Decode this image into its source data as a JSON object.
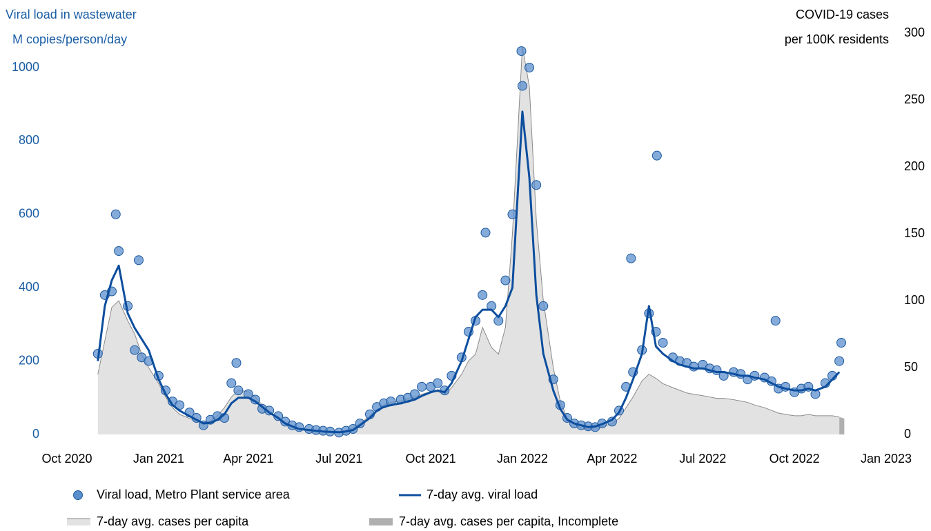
{
  "chart_data": {
    "type": "line",
    "ylabel": [
      "Viral load in wastewater",
      "M copies/person/day"
    ],
    "y2label": [
      "COVID-19 cases",
      "per 100K residents"
    ],
    "xlim": [
      "2020-10-01",
      "2023-01-01"
    ],
    "xticks": [
      {
        "value": "2020-10-01",
        "label": "Oct 2020"
      },
      {
        "value": "2021-01-01",
        "label": "Jan 2021"
      },
      {
        "value": "2021-04-01",
        "label": "Apr 2021"
      },
      {
        "value": "2021-07-01",
        "label": "Jul 2021"
      },
      {
        "value": "2021-10-01",
        "label": "Oct 2021"
      },
      {
        "value": "2022-01-01",
        "label": "Jan 2022"
      },
      {
        "value": "2022-04-01",
        "label": "Apr 2022"
      },
      {
        "value": "2022-07-01",
        "label": "Jul 2022"
      },
      {
        "value": "2022-10-01",
        "label": "Oct 2022"
      },
      {
        "value": "2023-01-01",
        "label": "Jan 2023"
      }
    ],
    "ylim": [
      0,
      1094
    ],
    "yticks": [
      0,
      200,
      400,
      600,
      800,
      1000
    ],
    "y2lim": [
      0,
      300
    ],
    "y2ticks": [
      0,
      50,
      100,
      150,
      200,
      250,
      300
    ],
    "series": [
      {
        "name": "Viral load, Metro Plant service area",
        "type": "scatter",
        "color": "#5b8fcc",
        "x": [
          "2020-11-01",
          "2020-11-08",
          "2020-11-15",
          "2020-11-22",
          "2020-12-01",
          "2020-12-08",
          "2020-12-15",
          "2020-12-22",
          "2021-01-01",
          "2021-01-08",
          "2021-01-15",
          "2021-01-22",
          "2021-02-01",
          "2021-02-08",
          "2021-02-15",
          "2021-02-22",
          "2021-03-01",
          "2021-03-08",
          "2021-03-15",
          "2021-03-22",
          "2021-04-01",
          "2021-04-08",
          "2021-04-15",
          "2021-04-22",
          "2021-05-01",
          "2021-05-08",
          "2021-05-15",
          "2021-05-22",
          "2021-06-01",
          "2021-06-08",
          "2021-06-15",
          "2021-06-22",
          "2021-07-01",
          "2021-07-08",
          "2021-07-15",
          "2021-07-22",
          "2021-08-01",
          "2021-08-08",
          "2021-08-15",
          "2021-08-22",
          "2021-09-01",
          "2021-09-08",
          "2021-09-15",
          "2021-09-22",
          "2021-10-01",
          "2021-10-08",
          "2021-10-15",
          "2021-10-22",
          "2021-11-01",
          "2021-11-08",
          "2021-11-15",
          "2021-11-22",
          "2021-12-01",
          "2021-12-08",
          "2021-12-15",
          "2021-12-22",
          "2022-01-01",
          "2022-01-08",
          "2022-01-15",
          "2022-01-22",
          "2022-02-01",
          "2022-02-08",
          "2022-02-15",
          "2022-02-22",
          "2022-03-01",
          "2022-03-08",
          "2022-03-15",
          "2022-03-22",
          "2022-04-01",
          "2022-04-08",
          "2022-04-15",
          "2022-04-22",
          "2022-05-01",
          "2022-05-08",
          "2022-05-15",
          "2022-05-22",
          "2022-06-01",
          "2022-06-08",
          "2022-06-15",
          "2022-06-22",
          "2022-07-01",
          "2022-07-08",
          "2022-07-15",
          "2022-07-22",
          "2022-08-01",
          "2022-08-08",
          "2022-08-15",
          "2022-08-22",
          "2022-09-01",
          "2022-09-08",
          "2022-09-15",
          "2022-09-22",
          "2022-10-01",
          "2022-10-08",
          "2022-10-15",
          "2022-10-22",
          "2022-11-01",
          "2022-11-08",
          "2022-11-15",
          "2020-11-19",
          "2020-12-12",
          "2021-03-20",
          "2021-11-25",
          "2021-12-31",
          "2022-04-20",
          "2022-05-16",
          "2022-09-12",
          "2022-11-17"
        ],
        "values": [
          220,
          380,
          390,
          500,
          350,
          230,
          210,
          200,
          160,
          120,
          90,
          80,
          60,
          45,
          25,
          40,
          50,
          45,
          140,
          120,
          110,
          95,
          70,
          65,
          50,
          35,
          25,
          20,
          15,
          12,
          10,
          8,
          5,
          10,
          15,
          30,
          55,
          75,
          85,
          90,
          95,
          100,
          110,
          130,
          130,
          140,
          120,
          160,
          210,
          280,
          310,
          380,
          350,
          310,
          420,
          600,
          950,
          1000,
          680,
          350,
          150,
          80,
          45,
          30,
          25,
          22,
          20,
          30,
          35,
          65,
          130,
          170,
          230,
          330,
          280,
          250,
          210,
          200,
          195,
          185,
          190,
          180,
          175,
          160,
          170,
          165,
          150,
          160,
          155,
          145,
          125,
          130,
          115,
          125,
          130,
          110,
          140,
          160,
          200,
          600,
          475,
          195,
          550,
          1045,
          480,
          760,
          310,
          250
        ]
      },
      {
        "name": "7-day avg. viral load",
        "type": "line",
        "color": "#0d4e9e",
        "x": [
          "2020-11-01",
          "2020-11-08",
          "2020-11-15",
          "2020-11-22",
          "2020-12-01",
          "2020-12-08",
          "2020-12-15",
          "2020-12-22",
          "2021-01-01",
          "2021-01-08",
          "2021-01-15",
          "2021-01-22",
          "2021-02-01",
          "2021-02-08",
          "2021-02-15",
          "2021-02-22",
          "2021-03-01",
          "2021-03-08",
          "2021-03-15",
          "2021-03-22",
          "2021-04-01",
          "2021-04-08",
          "2021-04-15",
          "2021-04-22",
          "2021-05-01",
          "2021-05-08",
          "2021-05-15",
          "2021-05-22",
          "2021-06-01",
          "2021-06-08",
          "2021-06-15",
          "2021-06-22",
          "2021-07-01",
          "2021-07-08",
          "2021-07-15",
          "2021-07-22",
          "2021-08-01",
          "2021-08-08",
          "2021-08-15",
          "2021-08-22",
          "2021-09-01",
          "2021-09-08",
          "2021-09-15",
          "2021-09-22",
          "2021-10-01",
          "2021-10-08",
          "2021-10-15",
          "2021-10-22",
          "2021-11-01",
          "2021-11-08",
          "2021-11-15",
          "2021-11-22",
          "2021-12-01",
          "2021-12-08",
          "2021-12-15",
          "2021-12-22",
          "2022-01-01",
          "2022-01-08",
          "2022-01-15",
          "2022-01-22",
          "2022-02-01",
          "2022-02-08",
          "2022-02-15",
          "2022-02-22",
          "2022-03-01",
          "2022-03-08",
          "2022-03-15",
          "2022-03-22",
          "2022-04-01",
          "2022-04-08",
          "2022-04-15",
          "2022-04-22",
          "2022-05-01",
          "2022-05-08",
          "2022-05-15",
          "2022-05-22",
          "2022-06-01",
          "2022-06-08",
          "2022-06-15",
          "2022-06-22",
          "2022-07-01",
          "2022-07-08",
          "2022-07-15",
          "2022-07-22",
          "2022-08-01",
          "2022-08-08",
          "2022-08-15",
          "2022-08-22",
          "2022-09-01",
          "2022-09-08",
          "2022-09-15",
          "2022-09-22",
          "2022-10-01",
          "2022-10-08",
          "2022-10-15",
          "2022-10-22",
          "2022-11-01",
          "2022-11-08",
          "2022-11-15"
        ],
        "values": [
          200,
          350,
          420,
          460,
          330,
          290,
          260,
          230,
          150,
          110,
          80,
          65,
          50,
          40,
          30,
          32,
          40,
          55,
          85,
          100,
          100,
          90,
          75,
          60,
          45,
          30,
          22,
          15,
          12,
          10,
          8,
          7,
          6,
          8,
          12,
          25,
          45,
          65,
          75,
          80,
          85,
          90,
          95,
          105,
          115,
          120,
          115,
          140,
          200,
          260,
          320,
          340,
          340,
          320,
          350,
          400,
          880,
          700,
          380,
          220,
          120,
          70,
          40,
          30,
          25,
          20,
          22,
          28,
          40,
          60,
          100,
          150,
          220,
          350,
          240,
          220,
          200,
          190,
          185,
          180,
          180,
          175,
          170,
          170,
          165,
          160,
          160,
          155,
          150,
          140,
          130,
          125,
          120,
          120,
          125,
          120,
          130,
          150,
          170
        ]
      },
      {
        "name": "7-day avg. cases per capita",
        "type": "area",
        "axis": "y2",
        "color": "#e2e2e2",
        "x": [
          "2020-11-01",
          "2020-11-08",
          "2020-11-15",
          "2020-11-22",
          "2020-12-01",
          "2020-12-08",
          "2020-12-15",
          "2020-12-22",
          "2021-01-01",
          "2021-01-08",
          "2021-01-15",
          "2021-01-22",
          "2021-02-01",
          "2021-02-08",
          "2021-02-15",
          "2021-02-22",
          "2021-03-01",
          "2021-03-08",
          "2021-03-15",
          "2021-03-22",
          "2021-04-01",
          "2021-04-08",
          "2021-04-15",
          "2021-04-22",
          "2021-05-01",
          "2021-05-08",
          "2021-05-15",
          "2021-05-22",
          "2021-06-01",
          "2021-06-08",
          "2021-06-15",
          "2021-06-22",
          "2021-07-01",
          "2021-07-08",
          "2021-07-15",
          "2021-07-22",
          "2021-08-01",
          "2021-08-08",
          "2021-08-15",
          "2021-08-22",
          "2021-09-01",
          "2021-09-08",
          "2021-09-15",
          "2021-09-22",
          "2021-10-01",
          "2021-10-08",
          "2021-10-15",
          "2021-10-22",
          "2021-11-01",
          "2021-11-08",
          "2021-11-15",
          "2021-11-22",
          "2021-12-01",
          "2021-12-08",
          "2021-12-15",
          "2021-12-22",
          "2022-01-01",
          "2022-01-08",
          "2022-01-15",
          "2022-01-22",
          "2022-02-01",
          "2022-02-08",
          "2022-02-15",
          "2022-02-22",
          "2022-03-01",
          "2022-03-08",
          "2022-03-15",
          "2022-03-22",
          "2022-04-01",
          "2022-04-08",
          "2022-04-15",
          "2022-04-22",
          "2022-05-01",
          "2022-05-08",
          "2022-05-15",
          "2022-05-22",
          "2022-06-01",
          "2022-06-08",
          "2022-06-15",
          "2022-06-22",
          "2022-07-01",
          "2022-07-08",
          "2022-07-15",
          "2022-07-22",
          "2022-08-01",
          "2022-08-08",
          "2022-08-15",
          "2022-08-22",
          "2022-09-01",
          "2022-09-08",
          "2022-09-15",
          "2022-09-22",
          "2022-10-01",
          "2022-10-08",
          "2022-10-15",
          "2022-10-22",
          "2022-11-01",
          "2022-11-08",
          "2022-11-15"
        ],
        "values": [
          45,
          70,
          95,
          100,
          85,
          75,
          60,
          50,
          38,
          28,
          20,
          15,
          12,
          10,
          9,
          10,
          14,
          20,
          28,
          33,
          32,
          28,
          22,
          17,
          13,
          9,
          6,
          4,
          3,
          2,
          2,
          2,
          2,
          3,
          5,
          8,
          14,
          18,
          22,
          24,
          25,
          27,
          28,
          30,
          32,
          32,
          30,
          35,
          45,
          55,
          60,
          80,
          65,
          60,
          80,
          150,
          290,
          260,
          160,
          100,
          50,
          25,
          12,
          8,
          5,
          4,
          5,
          6,
          8,
          12,
          20,
          28,
          40,
          45,
          42,
          38,
          35,
          33,
          31,
          30,
          29,
          28,
          27,
          27,
          26,
          25,
          24,
          22,
          20,
          18,
          16,
          15,
          14,
          14,
          15,
          14,
          14,
          14,
          13
        ]
      },
      {
        "name": "7-day avg. cases per capita, Incomplete",
        "type": "area",
        "axis": "y2",
        "color": "#b0b0b0",
        "x": [
          "2022-11-15",
          "2022-11-20"
        ],
        "values": [
          13,
          12
        ]
      }
    ]
  }
}
